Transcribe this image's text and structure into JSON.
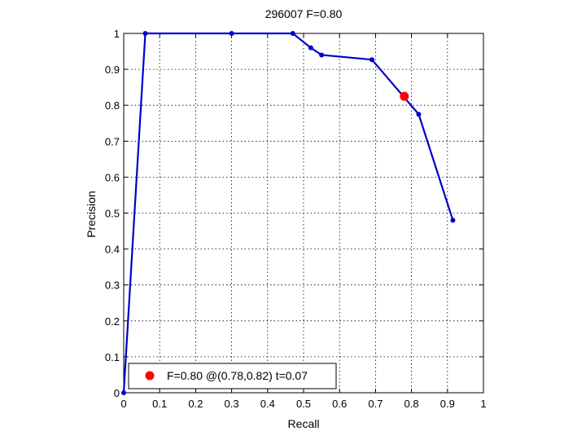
{
  "chart_data": {
    "type": "line",
    "title": "296007 F=0.80",
    "xlabel": "Recall",
    "ylabel": "Precision",
    "xlim": [
      0,
      1
    ],
    "ylim": [
      0,
      1
    ],
    "grid": true,
    "x_ticks": [
      "0",
      "0.1",
      "0.2",
      "0.3",
      "0.4",
      "0.5",
      "0.6",
      "0.7",
      "0.8",
      "0.9",
      "1"
    ],
    "y_ticks": [
      "0",
      "0.1",
      "0.2",
      "0.3",
      "0.4",
      "0.5",
      "0.6",
      "0.7",
      "0.8",
      "0.9",
      "1"
    ],
    "series": [
      {
        "color": "#0000cc",
        "points": [
          {
            "x": 0.0,
            "y": 0.0
          },
          {
            "x": 0.06,
            "y": 1.0
          },
          {
            "x": 0.3,
            "y": 1.0
          },
          {
            "x": 0.47,
            "y": 1.0
          },
          {
            "x": 0.52,
            "y": 0.96
          },
          {
            "x": 0.55,
            "y": 0.94
          },
          {
            "x": 0.69,
            "y": 0.927
          },
          {
            "x": 0.82,
            "y": 0.775
          },
          {
            "x": 0.915,
            "y": 0.48
          }
        ]
      }
    ],
    "highlight": {
      "x": 0.78,
      "y": 0.825,
      "color": "#ff0000"
    },
    "legend": {
      "position": "bottom-left",
      "text": "F=0.80 @(0.78,0.82) t=0.07"
    }
  }
}
